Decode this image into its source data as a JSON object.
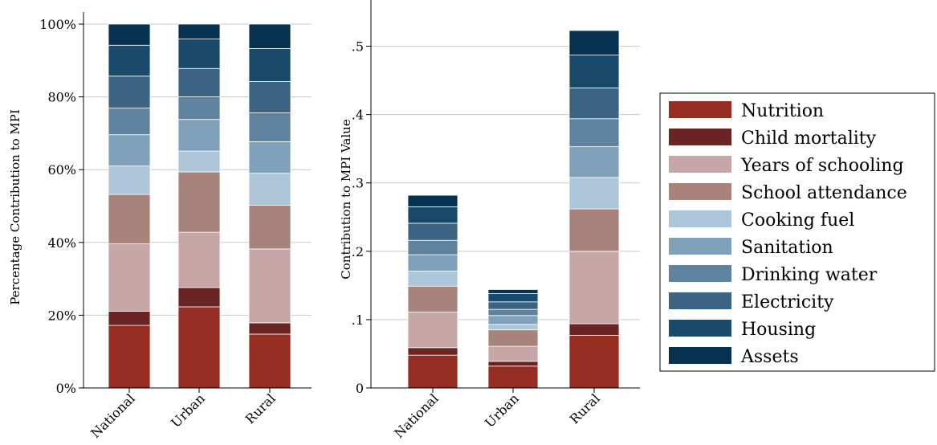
{
  "chart_data": [
    {
      "type": "bar",
      "stacked": true,
      "categories": [
        "National",
        "Urban",
        "Rural"
      ],
      "ylabel": "Percentage Contribution to MPI",
      "ylim": [
        0,
        100
      ],
      "yticks": [
        0,
        20,
        40,
        60,
        80,
        100
      ],
      "ytick_labels": [
        "0%",
        "20%",
        "40%",
        "60%",
        "80%",
        "100%"
      ],
      "series": [
        {
          "name": "Nutrition",
          "values": [
            17.2,
            22.3,
            14.8
          ]
        },
        {
          "name": "Child mortality",
          "values": [
            3.9,
            5.3,
            3.1
          ]
        },
        {
          "name": "Years of schooling",
          "values": [
            18.5,
            15.2,
            20.3
          ]
        },
        {
          "name": "School attendance",
          "values": [
            13.6,
            16.6,
            12.0
          ]
        },
        {
          "name": "Cooking fuel",
          "values": [
            7.8,
            5.7,
            8.8
          ]
        },
        {
          "name": "Sanitation",
          "values": [
            8.6,
            8.7,
            8.7
          ]
        },
        {
          "name": "Drinking water",
          "values": [
            7.3,
            6.2,
            7.9
          ]
        },
        {
          "name": "Electricity",
          "values": [
            8.8,
            7.8,
            8.6
          ]
        },
        {
          "name": "Housing",
          "values": [
            8.5,
            8.1,
            9.1
          ]
        },
        {
          "name": "Assets",
          "values": [
            5.8,
            4.1,
            6.7
          ]
        }
      ]
    },
    {
      "type": "bar",
      "stacked": true,
      "categories": [
        "National",
        "Urban",
        "Rural"
      ],
      "ylabel": "Contribution to MPI Value",
      "ylim": [
        0,
        0.55
      ],
      "yticks": [
        0,
        0.1,
        0.2,
        0.3,
        0.4,
        0.5
      ],
      "ytick_labels": [
        "0",
        ".1",
        ".2",
        ".3",
        ".4",
        ".5"
      ],
      "series": [
        {
          "name": "Nutrition",
          "values": [
            0.048,
            0.032,
            0.077
          ]
        },
        {
          "name": "Child mortality",
          "values": [
            0.011,
            0.007,
            0.017
          ]
        },
        {
          "name": "Years of schooling",
          "values": [
            0.052,
            0.022,
            0.106
          ]
        },
        {
          "name": "School attendance",
          "values": [
            0.038,
            0.024,
            0.062
          ]
        },
        {
          "name": "Cooking fuel",
          "values": [
            0.022,
            0.008,
            0.046
          ]
        },
        {
          "name": "Sanitation",
          "values": [
            0.024,
            0.013,
            0.045
          ]
        },
        {
          "name": "Drinking water",
          "values": [
            0.021,
            0.009,
            0.041
          ]
        },
        {
          "name": "Electricity",
          "values": [
            0.025,
            0.011,
            0.045
          ]
        },
        {
          "name": "Housing",
          "values": [
            0.024,
            0.012,
            0.048
          ]
        },
        {
          "name": "Assets",
          "values": [
            0.017,
            0.006,
            0.036
          ]
        }
      ]
    }
  ],
  "legend": {
    "placement": "right",
    "items": [
      {
        "label": "Nutrition",
        "color": "#962d22"
      },
      {
        "label": "Child mortality",
        "color": "#6b2424"
      },
      {
        "label": "Years of schooling",
        "color": "#c6a6a7"
      },
      {
        "label": "School attendance",
        "color": "#a7837c"
      },
      {
        "label": "Cooking fuel",
        "color": "#acc5d8"
      },
      {
        "label": "Sanitation",
        "color": "#7fa1b9"
      },
      {
        "label": "Drinking water",
        "color": "#5f829e"
      },
      {
        "label": "Electricity",
        "color": "#3c6482"
      },
      {
        "label": "Housing",
        "color": "#1a4a6b"
      },
      {
        "label": "Assets",
        "color": "#07324f"
      }
    ]
  }
}
